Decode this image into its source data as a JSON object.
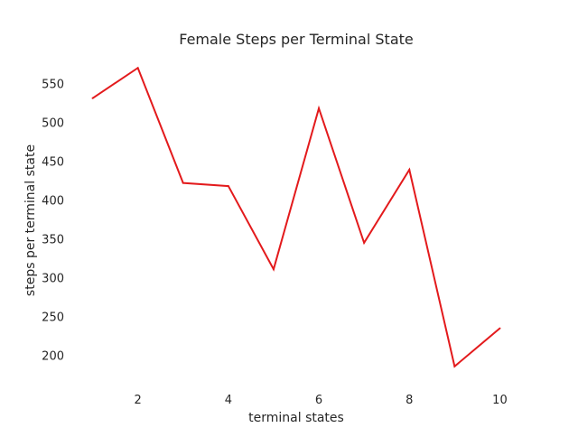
{
  "chart_data": {
    "type": "line",
    "title": "Female Steps per Terminal State",
    "xlabel": "terminal states",
    "ylabel": "steps per terminal state",
    "grid": false,
    "x": [
      1,
      2,
      3,
      4,
      5,
      6,
      7,
      8,
      9,
      10
    ],
    "series": [
      {
        "values": [
          531,
          570,
          422,
          418,
          311,
          518,
          345,
          439,
          186,
          235
        ],
        "color": "#e31a1c"
      }
    ],
    "xticks": [
      2,
      4,
      6,
      8,
      10
    ],
    "xtick_labels": [
      "2",
      "4",
      "6",
      "8",
      "10"
    ],
    "yticks": [
      200,
      250,
      300,
      350,
      400,
      450,
      500,
      550
    ],
    "ytick_labels": [
      "200",
      "250",
      "300",
      "350",
      "400",
      "450",
      "500",
      "550"
    ],
    "xlim": [
      0.55,
      10.45
    ],
    "ylim": [
      166,
      590
    ]
  }
}
